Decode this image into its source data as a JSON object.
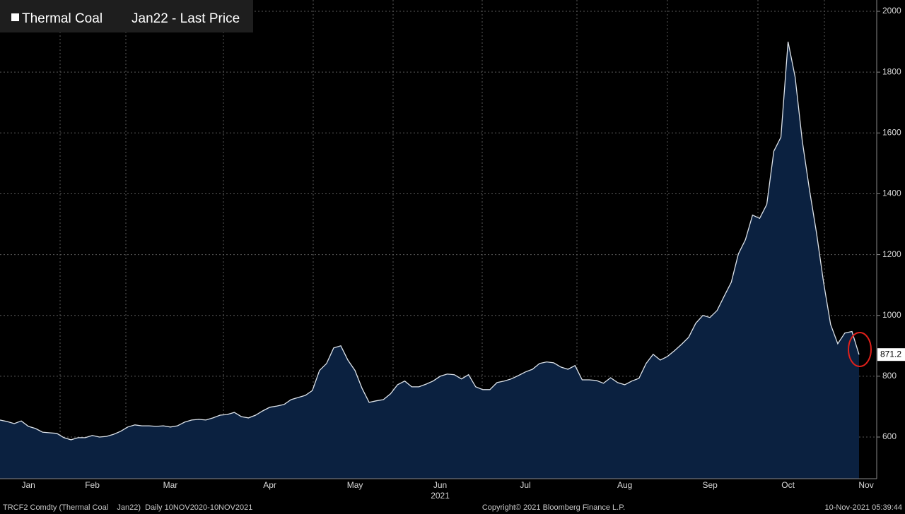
{
  "chart_data": {
    "type": "area",
    "title": "Thermal Coal",
    "categories": [
      null,
      null,
      null,
      null,
      "Jan",
      null,
      null,
      null,
      null,
      null,
      null,
      null,
      null,
      "Feb",
      null,
      null,
      null,
      null,
      null,
      null,
      null,
      null,
      null,
      null,
      "Mar",
      null,
      null,
      null,
      null,
      null,
      null,
      null,
      null,
      null,
      null,
      null,
      null,
      null,
      "Apr",
      null,
      null,
      null,
      null,
      null,
      null,
      null,
      null,
      null,
      null,
      null,
      "May",
      null,
      null,
      null,
      null,
      null,
      null,
      null,
      null,
      null,
      null,
      null,
      "Jun",
      null,
      null,
      null,
      null,
      null,
      null,
      null,
      null,
      null,
      null,
      null,
      "Jul",
      null,
      null,
      null,
      null,
      null,
      null,
      null,
      null,
      null,
      null,
      null,
      null,
      null,
      "Aug",
      null,
      null,
      null,
      null,
      null,
      null,
      null,
      null,
      null,
      null,
      null,
      "Sep",
      null,
      null,
      null,
      null,
      null,
      null,
      null,
      null,
      null,
      null,
      "Oct",
      null,
      null,
      null,
      null,
      null,
      null,
      null,
      null,
      null,
      null,
      "Nov",
      null
    ],
    "x_sublabel": "2021",
    "series": [
      {
        "name": "Jan22 - Last Price",
        "color": "#dde3ea",
        "fill": "#0b2140",
        "values": [
          656,
          651,
          644,
          653,
          635,
          628,
          616,
          614,
          612,
          598,
          591,
          598,
          598,
          605,
          600,
          602,
          609,
          619,
          633,
          640,
          637,
          637,
          635,
          637,
          633,
          637,
          649,
          656,
          658,
          656,
          663,
          672,
          674,
          681,
          667,
          663,
          672,
          686,
          698,
          702,
          707,
          723,
          730,
          737,
          753,
          819,
          842,
          893,
          900,
          853,
          819,
          760,
          714,
          719,
          723,
          742,
          772,
          784,
          765,
          765,
          774,
          784,
          800,
          807,
          805,
          791,
          805,
          765,
          756,
          756,
          779,
          784,
          791,
          802,
          814,
          823,
          842,
          847,
          844,
          830,
          823,
          835,
          788,
          788,
          786,
          777,
          795,
          779,
          772,
          784,
          793,
          842,
          872,
          853,
          865,
          884,
          905,
          928,
          974,
          1000,
          993,
          1016,
          1063,
          1109,
          1202,
          1249,
          1330,
          1319,
          1365,
          1540,
          1586,
          1900,
          1784,
          1574,
          1416,
          1272,
          1109,
          970,
          907,
          942,
          947,
          871.2,
          null,
          null
        ]
      }
    ],
    "ylim": [
      463,
      2014
    ],
    "yticks": [
      600,
      800,
      1000,
      1200,
      1400,
      1600,
      1800,
      2000
    ],
    "grid": true,
    "footer": [
      "TRCF2 Comdty (Thermal Coal    Jan22)  Daily 10NOV2020-10NOV2021",
      "Copyright© 2021 Bloomberg Finance L.P.",
      "10-Nov-2021 05:39:44"
    ]
  }
}
